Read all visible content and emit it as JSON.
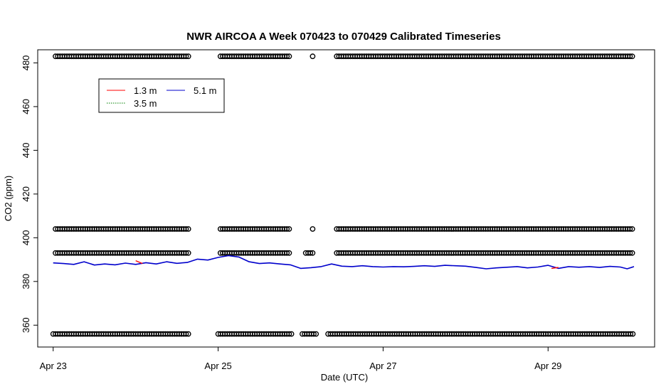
{
  "chart_data": {
    "type": "line",
    "title": "NWR AIRCOA A  Week 070423 to 070429  Calibrated Timeseries",
    "xlabel": "Date (UTC)",
    "ylabel": "CO2 (ppm)",
    "xlim": [
      "2007-04-22T19:30",
      "2007-04-30T07:00"
    ],
    "ylim": [
      350,
      486
    ],
    "x_ticks": [
      {
        "x": "2007-04-23T00:00",
        "label": "Apr 23"
      },
      {
        "x": "2007-04-25T00:00",
        "label": "Apr 25"
      },
      {
        "x": "2007-04-27T00:00",
        "label": "Apr 27"
      },
      {
        "x": "2007-04-29T00:00",
        "label": "Apr 29"
      }
    ],
    "y_ticks": [
      360,
      380,
      400,
      420,
      440,
      460,
      480
    ],
    "grid": false,
    "legend_position": "top-left",
    "legend": [
      {
        "label": "1.3 m",
        "color": "#ff0000"
      },
      {
        "label": "3.5 m",
        "color": "#008000"
      },
      {
        "label": "5.1 m",
        "color": "#0000cc"
      }
    ],
    "series": [
      {
        "name": "5.1 m",
        "color": "#0000cc",
        "points": [
          [
            "2007-04-23T00:00",
            388.5
          ],
          [
            "2007-04-23T03:00",
            388.2
          ],
          [
            "2007-04-23T06:00",
            387.8
          ],
          [
            "2007-04-23T09:00",
            389.0
          ],
          [
            "2007-04-23T12:00",
            387.5
          ],
          [
            "2007-04-23T15:00",
            388.0
          ],
          [
            "2007-04-23T18:00",
            387.6
          ],
          [
            "2007-04-23T21:00",
            388.4
          ],
          [
            "2007-04-24T00:00",
            387.8
          ],
          [
            "2007-04-24T03:00",
            388.6
          ],
          [
            "2007-04-24T06:00",
            388.0
          ],
          [
            "2007-04-24T09:00",
            389.0
          ],
          [
            "2007-04-24T12:00",
            388.3
          ],
          [
            "2007-04-24T15:00",
            388.7
          ],
          [
            "2007-04-24T18:00",
            390.2
          ],
          [
            "2007-04-24T21:00",
            389.8
          ],
          [
            "2007-04-25T00:00",
            391.0
          ],
          [
            "2007-04-25T03:00",
            391.8
          ],
          [
            "2007-04-25T06:00",
            391.2
          ],
          [
            "2007-04-25T09:00",
            389.0
          ],
          [
            "2007-04-25T12:00",
            388.2
          ],
          [
            "2007-04-25T15:00",
            388.5
          ],
          [
            "2007-04-25T18:00",
            388.0
          ],
          [
            "2007-04-25T21:00",
            387.6
          ],
          [
            "2007-04-26T00:00",
            386.0
          ],
          [
            "2007-04-26T03:00",
            386.3
          ],
          [
            "2007-04-26T06:00",
            386.8
          ],
          [
            "2007-04-26T09:00",
            388.0
          ],
          [
            "2007-04-26T12:00",
            387.0
          ],
          [
            "2007-04-26T15:00",
            386.8
          ],
          [
            "2007-04-26T18:00",
            387.2
          ],
          [
            "2007-04-26T21:00",
            386.8
          ],
          [
            "2007-04-27T00:00",
            386.6
          ],
          [
            "2007-04-27T03:00",
            386.8
          ],
          [
            "2007-04-27T06:00",
            386.7
          ],
          [
            "2007-04-27T09:00",
            386.9
          ],
          [
            "2007-04-27T12:00",
            387.2
          ],
          [
            "2007-04-27T15:00",
            386.9
          ],
          [
            "2007-04-27T18:00",
            387.4
          ],
          [
            "2007-04-27T21:00",
            387.2
          ],
          [
            "2007-04-28T00:00",
            387.0
          ],
          [
            "2007-04-28T03:00",
            386.4
          ],
          [
            "2007-04-28T06:00",
            385.8
          ],
          [
            "2007-04-28T09:00",
            386.2
          ],
          [
            "2007-04-28T12:00",
            386.5
          ],
          [
            "2007-04-28T15:00",
            386.8
          ],
          [
            "2007-04-28T18:00",
            386.2
          ],
          [
            "2007-04-28T21:00",
            386.6
          ],
          [
            "2007-04-29T00:00",
            387.4
          ],
          [
            "2007-04-29T03:00",
            386.0
          ],
          [
            "2007-04-29T06:00",
            386.8
          ],
          [
            "2007-04-29T09:00",
            386.5
          ],
          [
            "2007-04-29T12:00",
            386.8
          ],
          [
            "2007-04-29T15:00",
            386.4
          ],
          [
            "2007-04-29T18:00",
            386.9
          ],
          [
            "2007-04-29T21:00",
            386.6
          ],
          [
            "2007-04-29T23:00",
            385.8
          ],
          [
            "2007-04-30T01:00",
            386.8
          ]
        ]
      },
      {
        "name": "1.3 m",
        "color": "#ff0000",
        "points": [
          [
            "2007-04-24T00:00",
            389.5
          ],
          [
            "2007-04-24T02:00",
            388.2
          ],
          [
            "2007-04-29T01:00",
            386.0
          ],
          [
            "2007-04-29T03:00",
            386.4
          ]
        ]
      }
    ],
    "markers": {
      "symbol": "open-circle",
      "levels": [
        {
          "y": 483,
          "segments": [
            [
              "2007-04-23T00:40",
              "2007-04-24T15:40"
            ],
            [
              "2007-04-25T00:40",
              "2007-04-25T21:00"
            ],
            [
              "2007-04-26T03:30",
              "2007-04-26T03:40"
            ],
            [
              "2007-04-26T10:30",
              "2007-04-30T01:00"
            ]
          ]
        },
        {
          "y": 404,
          "segments": [
            [
              "2007-04-23T00:40",
              "2007-04-24T15:40"
            ],
            [
              "2007-04-25T00:40",
              "2007-04-25T21:00"
            ],
            [
              "2007-04-26T03:30",
              "2007-04-26T03:40"
            ],
            [
              "2007-04-26T10:30",
              "2007-04-30T01:00"
            ]
          ]
        },
        {
          "y": 393,
          "segments": [
            [
              "2007-04-23T00:40",
              "2007-04-24T15:40"
            ],
            [
              "2007-04-25T00:40",
              "2007-04-25T21:00"
            ],
            [
              "2007-04-26T01:30",
              "2007-04-26T03:40"
            ],
            [
              "2007-04-26T10:30",
              "2007-04-30T01:00"
            ]
          ]
        },
        {
          "y": 356,
          "segments": [
            [
              "2007-04-23T00:00",
              "2007-04-24T15:40"
            ],
            [
              "2007-04-25T00:00",
              "2007-04-25T21:30"
            ],
            [
              "2007-04-26T00:30",
              "2007-04-26T05:00"
            ],
            [
              "2007-04-26T08:00",
              "2007-04-30T01:00"
            ]
          ]
        }
      ]
    }
  }
}
